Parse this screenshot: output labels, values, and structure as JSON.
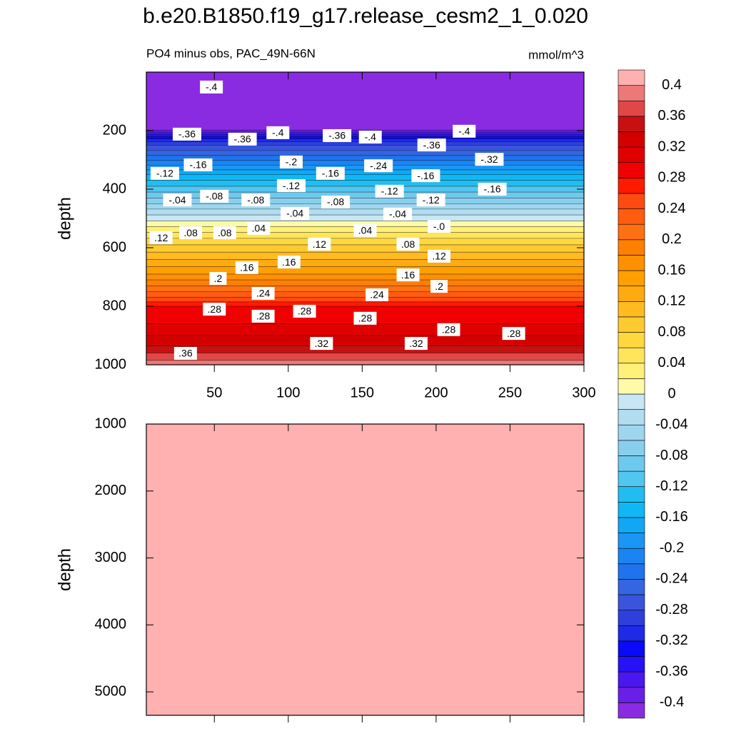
{
  "chart_data": {
    "type": "contour",
    "title": "b.e20.B1850.f19_g17.release_cesm2_1_0.020",
    "subtitle": "PO4 minus obs, PAC_49N-66N",
    "units": "mmol/m^3",
    "xlim": [
      4,
      300
    ],
    "xticks": [
      50,
      100,
      150,
      200,
      250,
      300
    ],
    "panels": [
      {
        "y_label": "depth",
        "ylim": [
          1000,
          0
        ],
        "yticks": [
          200,
          400,
          600,
          800,
          1000
        ]
      },
      {
        "y_label": "depth",
        "ylim": [
          5350,
          1000
        ],
        "yticks": [
          1000,
          2000,
          3000,
          4000,
          5000
        ]
      }
    ],
    "levels": [
      -0.4,
      -0.38,
      -0.36,
      -0.34,
      -0.32,
      -0.3,
      -0.28,
      -0.26,
      -0.24,
      -0.22,
      -0.2,
      -0.18,
      -0.16,
      -0.14,
      -0.12,
      -0.1,
      -0.08,
      -0.06,
      -0.04,
      -0.02,
      0,
      0.02,
      0.04,
      0.06,
      0.08,
      0.1,
      0.12,
      0.14,
      0.16,
      0.18,
      0.2,
      0.22,
      0.24,
      0.26,
      0.28,
      0.3,
      0.32,
      0.34,
      0.36,
      0.38,
      0.4
    ],
    "contour_depths": [
      198,
      205,
      212,
      220,
      228,
      238,
      250,
      268,
      285,
      302,
      318,
      334,
      350,
      370,
      390,
      410,
      430,
      450,
      468,
      488,
      508,
      528,
      548,
      568,
      590,
      615,
      640,
      665,
      690,
      710,
      730,
      750,
      770,
      785,
      800,
      860,
      900,
      935,
      960,
      985,
      1000
    ],
    "colors": [
      "#8a2be2",
      "#6a1fe8",
      "#4a18ef",
      "#2612f5",
      "#0a0af8",
      "#1f2ae6",
      "#2f3fdc",
      "#3a55dc",
      "#3366e0",
      "#1f74ee",
      "#1a85f2",
      "#1a96f5",
      "#10a8f5",
      "#0fb8f5",
      "#22bdf0",
      "#50c6f0",
      "#6ec9ee",
      "#88cfee",
      "#9fd6ef",
      "#b2dcf0",
      "#c8e6f5",
      "#fffaa8",
      "#fff07a",
      "#ffe55a",
      "#ffd840",
      "#ffca30",
      "#ffbb20",
      "#ffaa10",
      "#ffa000",
      "#ff9000",
      "#ff8000",
      "#ff7010",
      "#ff5c10",
      "#ff4a10",
      "#ff1a00",
      "#f00000",
      "#e00000",
      "#d40000",
      "#c81010",
      "#e04848",
      "#ec7878",
      "#ffb0b0"
    ],
    "colorbar_ticks": [
      -0.4,
      -0.36,
      -0.32,
      -0.28,
      -0.24,
      -0.2,
      -0.16,
      -0.12,
      -0.08,
      -0.04,
      0,
      0.04,
      0.08,
      0.12,
      0.16,
      0.2,
      0.24,
      0.28,
      0.32,
      0.36,
      0.4
    ],
    "contour_labels": [
      {
        "label": "-.4",
        "value": -0.4,
        "x": 48,
        "depth": 51
      },
      {
        "label": "-.36",
        "value": -0.36,
        "x": 31.5,
        "depth": 212
      },
      {
        "label": "-.36",
        "value": -0.36,
        "x": 69,
        "depth": 229
      },
      {
        "label": "-.4",
        "value": -0.4,
        "x": 93,
        "depth": 207
      },
      {
        "label": "-.36",
        "value": -0.36,
        "x": 133,
        "depth": 217
      },
      {
        "label": "-.4",
        "value": -0.4,
        "x": 155.5,
        "depth": 222
      },
      {
        "label": "-.36",
        "value": -0.36,
        "x": 197,
        "depth": 249
      },
      {
        "label": "-.4",
        "value": -0.4,
        "x": 219,
        "depth": 202
      },
      {
        "label": "-.32",
        "value": -0.32,
        "x": 236,
        "depth": 298
      },
      {
        "label": "-.12",
        "value": -0.12,
        "x": 16.5,
        "depth": 346
      },
      {
        "label": "-.16",
        "value": -0.16,
        "x": 39,
        "depth": 317
      },
      {
        "label": "-.2",
        "value": -0.2,
        "x": 102,
        "depth": 307
      },
      {
        "label": "-.12",
        "value": -0.12,
        "x": 102,
        "depth": 388
      },
      {
        "label": "-.16",
        "value": -0.16,
        "x": 128.5,
        "depth": 346
      },
      {
        "label": "-.24",
        "value": -0.24,
        "x": 161,
        "depth": 320
      },
      {
        "label": "-.16",
        "value": -0.16,
        "x": 193,
        "depth": 354
      },
      {
        "label": "-.12",
        "value": -0.12,
        "x": 168.5,
        "depth": 407
      },
      {
        "label": "-.12",
        "value": -0.12,
        "x": 196.5,
        "depth": 437
      },
      {
        "label": "-.16",
        "value": -0.16,
        "x": 238,
        "depth": 400
      },
      {
        "label": "-.04",
        "value": -0.04,
        "x": 25,
        "depth": 437
      },
      {
        "label": "-.08",
        "value": -0.08,
        "x": 50,
        "depth": 424
      },
      {
        "label": "-.08",
        "value": -0.08,
        "x": 78,
        "depth": 437
      },
      {
        "label": "-.04",
        "value": -0.04,
        "x": 104.5,
        "depth": 483
      },
      {
        "label": "-.08",
        "value": -0.08,
        "x": 132,
        "depth": 444
      },
      {
        "label": "-.04",
        "value": -0.04,
        "x": 174,
        "depth": 485
      },
      {
        "label": "-.0",
        "value": 0,
        "x": 202,
        "depth": 527
      },
      {
        "label": ".12",
        "value": 0.12,
        "x": 14,
        "depth": 566
      },
      {
        "label": ".08",
        "value": 0.08,
        "x": 34,
        "depth": 549
      },
      {
        "label": ".08",
        "value": 0.08,
        "x": 57,
        "depth": 549
      },
      {
        "label": ".04",
        "value": 0.04,
        "x": 80,
        "depth": 534
      },
      {
        "label": ".04",
        "value": 0.04,
        "x": 152,
        "depth": 541
      },
      {
        "label": ".12",
        "value": 0.12,
        "x": 121,
        "depth": 588
      },
      {
        "label": ".08",
        "value": 0.08,
        "x": 181,
        "depth": 588
      },
      {
        "label": ".12",
        "value": 0.12,
        "x": 202,
        "depth": 629
      },
      {
        "label": ".16",
        "value": 0.16,
        "x": 72,
        "depth": 668
      },
      {
        "label": ".16",
        "value": 0.16,
        "x": 100.5,
        "depth": 649
      },
      {
        "label": ".2",
        "value": 0.2,
        "x": 52.5,
        "depth": 705
      },
      {
        "label": ".16",
        "value": 0.16,
        "x": 181,
        "depth": 693
      },
      {
        "label": ".24",
        "value": 0.24,
        "x": 83,
        "depth": 756
      },
      {
        "label": ".24",
        "value": 0.24,
        "x": 160,
        "depth": 761
      },
      {
        "label": ".2",
        "value": 0.2,
        "x": 202,
        "depth": 732
      },
      {
        "label": ".28",
        "value": 0.28,
        "x": 50,
        "depth": 810
      },
      {
        "label": ".28",
        "value": 0.28,
        "x": 83,
        "depth": 834
      },
      {
        "label": ".28",
        "value": 0.28,
        "x": 111,
        "depth": 817
      },
      {
        "label": ".28",
        "value": 0.28,
        "x": 152,
        "depth": 841
      },
      {
        "label": ".28",
        "value": 0.28,
        "x": 208.5,
        "depth": 880
      },
      {
        "label": ".28",
        "value": 0.28,
        "x": 252.5,
        "depth": 893
      },
      {
        "label": ".32",
        "value": 0.32,
        "x": 122.5,
        "depth": 927
      },
      {
        "label": ".32",
        "value": 0.32,
        "x": 186.5,
        "depth": 927
      },
      {
        "label": ".36",
        "value": 0.36,
        "x": 30.5,
        "depth": 961
      }
    ]
  }
}
